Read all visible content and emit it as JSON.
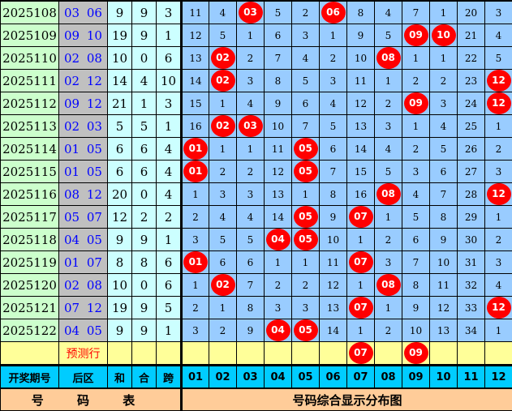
{
  "columns": [
    "01",
    "02",
    "03",
    "04",
    "05",
    "06",
    "07",
    "08",
    "09",
    "10",
    "11",
    "12"
  ],
  "rows": [
    {
      "period": "2025108",
      "back": [
        "03",
        "06"
      ],
      "sum": "9",
      "mod": "9",
      "span": "3",
      "cells": [
        "11",
        "4",
        "03",
        "5",
        "2",
        "06",
        "8",
        "4",
        "7",
        "1",
        "20",
        "3"
      ]
    },
    {
      "period": "2025109",
      "back": [
        "09",
        "10"
      ],
      "sum": "19",
      "mod": "9",
      "span": "1",
      "cells": [
        "12",
        "5",
        "1",
        "6",
        "3",
        "1",
        "9",
        "5",
        "09",
        "10",
        "21",
        "4"
      ]
    },
    {
      "period": "2025110",
      "back": [
        "02",
        "08"
      ],
      "sum": "10",
      "mod": "0",
      "span": "6",
      "cells": [
        "13",
        "02",
        "2",
        "7",
        "4",
        "2",
        "10",
        "08",
        "1",
        "1",
        "22",
        "5"
      ]
    },
    {
      "period": "2025111",
      "back": [
        "02",
        "12"
      ],
      "sum": "14",
      "mod": "4",
      "span": "10",
      "cells": [
        "14",
        "02",
        "3",
        "8",
        "5",
        "3",
        "11",
        "1",
        "2",
        "2",
        "23",
        "12"
      ]
    },
    {
      "period": "2025112",
      "back": [
        "09",
        "12"
      ],
      "sum": "21",
      "mod": "1",
      "span": "3",
      "cells": [
        "15",
        "1",
        "4",
        "9",
        "6",
        "4",
        "12",
        "2",
        "09",
        "3",
        "24",
        "12"
      ]
    },
    {
      "period": "2025113",
      "back": [
        "02",
        "03"
      ],
      "sum": "5",
      "mod": "5",
      "span": "1",
      "cells": [
        "16",
        "02",
        "03",
        "10",
        "7",
        "5",
        "13",
        "3",
        "1",
        "4",
        "25",
        "1"
      ]
    },
    {
      "period": "2025114",
      "back": [
        "01",
        "05"
      ],
      "sum": "6",
      "mod": "6",
      "span": "4",
      "cells": [
        "01",
        "1",
        "1",
        "11",
        "05",
        "6",
        "14",
        "4",
        "2",
        "5",
        "26",
        "2"
      ]
    },
    {
      "period": "2025115",
      "back": [
        "01",
        "05"
      ],
      "sum": "6",
      "mod": "6",
      "span": "4",
      "cells": [
        "01",
        "2",
        "2",
        "12",
        "05",
        "7",
        "15",
        "5",
        "3",
        "6",
        "27",
        "3"
      ]
    },
    {
      "period": "2025116",
      "back": [
        "08",
        "12"
      ],
      "sum": "20",
      "mod": "0",
      "span": "4",
      "cells": [
        "1",
        "3",
        "3",
        "13",
        "1",
        "8",
        "16",
        "08",
        "4",
        "7",
        "28",
        "12"
      ]
    },
    {
      "period": "2025117",
      "back": [
        "05",
        "07"
      ],
      "sum": "12",
      "mod": "2",
      "span": "2",
      "cells": [
        "2",
        "4",
        "4",
        "14",
        "05",
        "9",
        "07",
        "1",
        "5",
        "8",
        "29",
        "1"
      ]
    },
    {
      "period": "2025118",
      "back": [
        "04",
        "05"
      ],
      "sum": "9",
      "mod": "9",
      "span": "1",
      "cells": [
        "3",
        "5",
        "5",
        "04",
        "05",
        "10",
        "1",
        "2",
        "6",
        "9",
        "30",
        "2"
      ]
    },
    {
      "period": "2025119",
      "back": [
        "01",
        "07"
      ],
      "sum": "8",
      "mod": "8",
      "span": "6",
      "cells": [
        "01",
        "6",
        "6",
        "1",
        "1",
        "11",
        "07",
        "3",
        "7",
        "10",
        "31",
        "3"
      ]
    },
    {
      "period": "2025120",
      "back": [
        "02",
        "08"
      ],
      "sum": "10",
      "mod": "0",
      "span": "6",
      "cells": [
        "1",
        "02",
        "7",
        "2",
        "2",
        "12",
        "1",
        "08",
        "8",
        "11",
        "32",
        "4"
      ]
    },
    {
      "period": "2025121",
      "back": [
        "07",
        "12"
      ],
      "sum": "19",
      "mod": "9",
      "span": "5",
      "cells": [
        "2",
        "1",
        "8",
        "3",
        "3",
        "13",
        "07",
        "1",
        "9",
        "12",
        "33",
        "12"
      ]
    },
    {
      "period": "2025122",
      "back": [
        "04",
        "05"
      ],
      "sum": "9",
      "mod": "9",
      "span": "1",
      "cells": [
        "3",
        "2",
        "9",
        "04",
        "05",
        "14",
        "1",
        "2",
        "10",
        "13",
        "34",
        "1"
      ]
    }
  ],
  "prediction": {
    "label": "预测行",
    "balls": [
      "07",
      "09"
    ]
  },
  "header": {
    "period": "开奖期号",
    "back": "后区",
    "sum": "和",
    "mod": "合",
    "span": "跨"
  },
  "footer": {
    "left": "号 码 表",
    "right": "号码综合显示分布图"
  },
  "colors": {
    "ball": "#ff0000",
    "period_bg": "#ccffcc",
    "back_bg": "#c0c0c0",
    "back_text": "#0000ff",
    "stat_bg": "#ccffff",
    "grid_bg": "#99ccff",
    "prediction_bg": "#ffff99",
    "header_bg": "#00ccff",
    "footer_bg": "#ffcc99"
  }
}
